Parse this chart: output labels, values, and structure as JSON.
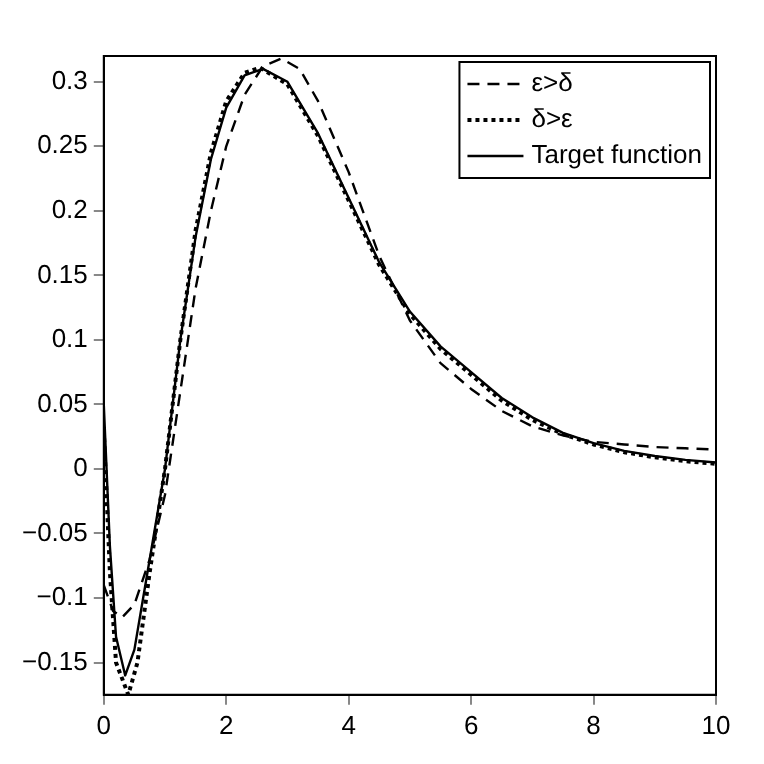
{
  "chart_data": {
    "type": "line",
    "xlim": [
      0,
      10
    ],
    "xticks": [
      0,
      2,
      4,
      6,
      8,
      10
    ],
    "ylim": [
      -0.175,
      0.32
    ],
    "yticks": [
      -0.15,
      -0.1,
      -0.05,
      0,
      0.05,
      0.1,
      0.15,
      0.2,
      0.25,
      0.3
    ],
    "grid": false,
    "legend": "top right",
    "marker": "none",
    "series": [
      {
        "name": "ε>δ",
        "color": "#000000",
        "line_style": "dashed",
        "x": [
          0,
          0.15,
          0.3,
          0.5,
          0.75,
          1,
          1.25,
          1.5,
          1.75,
          2,
          2.3,
          2.6,
          2.9,
          3.2,
          3.5,
          4,
          4.5,
          5,
          5.5,
          6,
          6.5,
          7,
          7.5,
          8,
          8.5,
          9,
          9.5,
          10
        ],
        "values": [
          -0.09,
          -0.11,
          -0.115,
          -0.105,
          -0.07,
          -0.02,
          0.06,
          0.14,
          0.2,
          0.25,
          0.29,
          0.312,
          0.318,
          0.31,
          0.285,
          0.23,
          0.165,
          0.115,
          0.082,
          0.062,
          0.045,
          0.033,
          0.026,
          0.021,
          0.019,
          0.017,
          0.016,
          0.015
        ]
      },
      {
        "name": "δ>ε",
        "color": "#000000",
        "line_style": "dotted",
        "x": [
          0,
          0.1,
          0.2,
          0.4,
          0.55,
          0.75,
          1,
          1.25,
          1.5,
          1.75,
          2,
          2.3,
          2.55,
          3,
          3.5,
          4,
          4.5,
          5,
          5.5,
          6,
          6.5,
          7,
          7.5,
          8,
          8.5,
          9,
          9.5,
          10
        ],
        "values": [
          0.03,
          -0.08,
          -0.15,
          -0.175,
          -0.15,
          -0.08,
          0,
          0.1,
          0.185,
          0.245,
          0.285,
          0.307,
          0.311,
          0.298,
          0.258,
          0.208,
          0.158,
          0.12,
          0.093,
          0.073,
          0.053,
          0.038,
          0.027,
          0.019,
          0.013,
          0.009,
          0.006,
          0.004
        ]
      },
      {
        "name": "Target function",
        "color": "#000000",
        "line_style": "solid",
        "x": [
          0,
          0.1,
          0.2,
          0.35,
          0.5,
          0.75,
          1,
          1.25,
          1.5,
          1.75,
          2,
          2.3,
          2.6,
          3,
          3.5,
          4,
          4.5,
          5,
          5.5,
          6,
          6.5,
          7,
          7.5,
          8,
          8.5,
          9,
          9.5,
          10
        ],
        "values": [
          0.05,
          -0.06,
          -0.13,
          -0.16,
          -0.14,
          -0.07,
          0,
          0.1,
          0.18,
          0.24,
          0.28,
          0.305,
          0.31,
          0.3,
          0.26,
          0.21,
          0.16,
          0.122,
          0.095,
          0.075,
          0.055,
          0.04,
          0.028,
          0.02,
          0.014,
          0.01,
          0.007,
          0.005
        ]
      }
    ]
  }
}
